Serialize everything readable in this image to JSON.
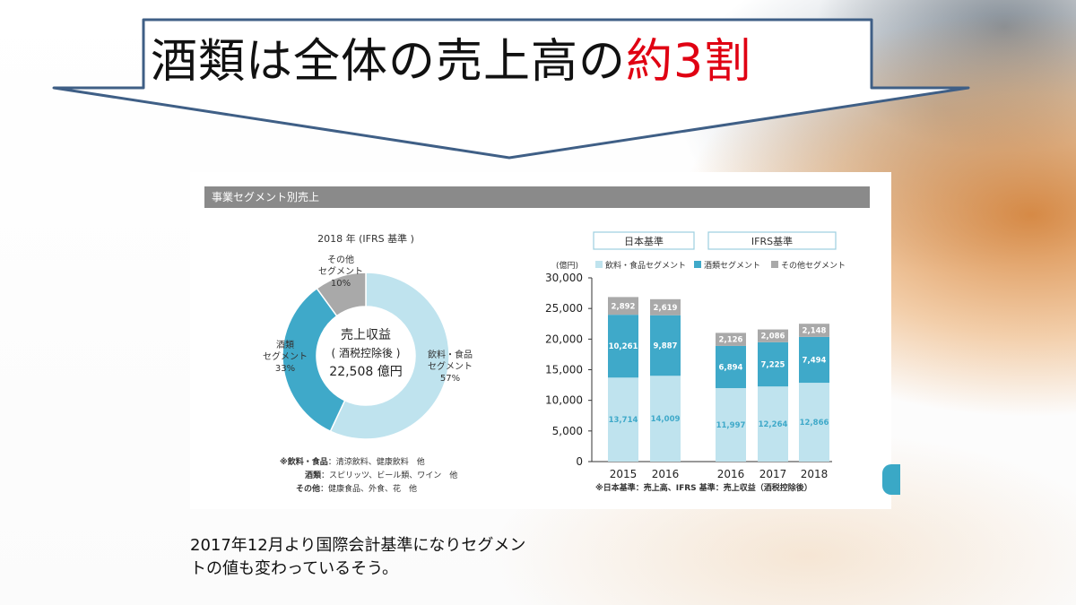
{
  "slide": {
    "title_main": "酒類は全体の売上高の",
    "title_accent": "約3割",
    "caption_line1": "2017年12月より国際会計基準になりセグメン",
    "caption_line2": "トの値も変わっているそう。"
  },
  "panel": {
    "header": "事業セグメント別売上"
  },
  "colors": {
    "beverage": "#bfe3ee",
    "alcohol": "#3fa9c9",
    "other": "#a9a9a9",
    "accent": "#e00012",
    "arrow_border": "#3f5f86"
  },
  "chart_data": [
    {
      "type": "pie",
      "title": "2018 年 (IFRS 基準 )",
      "center_text": [
        "売上収益",
        "( 酒税控除後 )",
        "22,508 億円"
      ],
      "slices": [
        {
          "name_lines": [
            "飲料・食品",
            "セグメント"
          ],
          "value": 57,
          "label": "57%"
        },
        {
          "name_lines": [
            "酒類",
            "セグメント"
          ],
          "value": 33,
          "label": "33%"
        },
        {
          "name_lines": [
            "その他",
            "セグメント"
          ],
          "value": 10,
          "label": "10%"
        }
      ],
      "notes": [
        {
          "key": "※飲料・食品",
          "text": "：清涼飲料、健康飲料　他"
        },
        {
          "key": "酒類",
          "text": "：スピリッツ、ビール類、ワイン　他"
        },
        {
          "key": "その他",
          "text": "：健康食品、外食、花　他"
        }
      ]
    },
    {
      "type": "bar",
      "stacked": true,
      "group_labels": [
        "日本基準",
        "IFRS基準"
      ],
      "groups": [
        [
          0,
          1
        ],
        [
          2,
          3,
          4
        ]
      ],
      "categories": [
        "2015",
        "2016",
        "2016",
        "2017",
        "2018"
      ],
      "unit_label": "(億円)",
      "ylim": [
        0,
        30000
      ],
      "yticks": [
        "0",
        "5,000",
        "10,000",
        "15,000",
        "20,000",
        "25,000",
        "30,000"
      ],
      "series": [
        {
          "name": "飲料・食品セグメント",
          "values": [
            13714,
            14009,
            11997,
            12264,
            12866
          ],
          "labels": [
            "13,714",
            "14,009",
            "11,997",
            "12,264",
            "12,866"
          ]
        },
        {
          "name": "酒類セグメント",
          "values": [
            10261,
            9887,
            6894,
            7225,
            7494
          ],
          "labels": [
            "10,261",
            "9,887",
            "6,894",
            "7,225",
            "7,494"
          ]
        },
        {
          "name": "その他セグメント",
          "values": [
            2892,
            2619,
            2126,
            2086,
            2148
          ],
          "labels": [
            "2,892",
            "2,619",
            "2,126",
            "2,086",
            "2,148"
          ]
        }
      ],
      "footnote": "※日本基準：売上高、IFRS 基準：売上収益（酒税控除後）"
    }
  ]
}
